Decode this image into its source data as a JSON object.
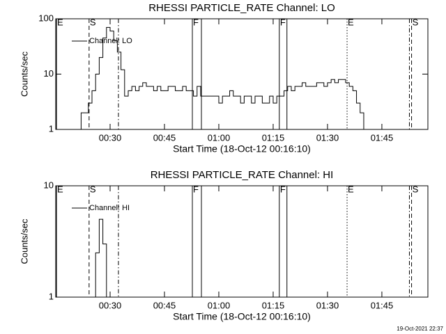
{
  "chart_data": [
    {
      "type": "line",
      "title": "RHESSI PARTICLE_RATE Channel: LO",
      "xlabel": "Start Time (18-Oct-12 00:16:10)",
      "ylabel": "Counts/sec",
      "log_y": true,
      "legend": "upper left",
      "xlim": [
        15,
        117.7
      ],
      "xticks": [
        {
          "value": 30,
          "label": "00:30"
        },
        {
          "value": 45,
          "label": "00:45"
        },
        {
          "value": 60,
          "label": "01:00"
        },
        {
          "value": 75,
          "label": "01:15"
        },
        {
          "value": 90,
          "label": "01:30"
        },
        {
          "value": 105,
          "label": "01:45"
        }
      ],
      "ylim": [
        1,
        100
      ],
      "yticks": [
        1,
        10,
        100
      ],
      "x": [
        16,
        17,
        18,
        19,
        20,
        21,
        22,
        23,
        24,
        25,
        26,
        27,
        28,
        29,
        30,
        31,
        32,
        33,
        34,
        35,
        36,
        37,
        38,
        39,
        40,
        41,
        42,
        43,
        44,
        45,
        46,
        47,
        48,
        49,
        50,
        51,
        52,
        53,
        54,
        55,
        56,
        57,
        58,
        59,
        60,
        61,
        62,
        63,
        64,
        65,
        66,
        67,
        68,
        69,
        70,
        71,
        72,
        73,
        74,
        75,
        76,
        77,
        78,
        79,
        80,
        81,
        82,
        83,
        84,
        85,
        86,
        87,
        88,
        89,
        90,
        91,
        92,
        93,
        94,
        95,
        96,
        97,
        98,
        99,
        100,
        101,
        102,
        103,
        104,
        105,
        106,
        107,
        108,
        109,
        110,
        111,
        112,
        113
      ],
      "series": [
        {
          "name": "Channel: LO",
          "color": "#000000",
          "values": [
            1,
            1,
            1,
            1,
            1,
            1,
            2,
            2,
            3,
            5,
            10,
            20,
            45,
            70,
            60,
            40,
            25,
            12,
            4,
            5,
            6,
            5,
            6,
            7,
            6,
            6,
            5,
            6,
            5,
            5,
            6,
            6,
            5,
            5,
            6,
            5,
            5,
            4,
            6,
            4,
            4,
            4,
            4,
            4,
            3,
            4,
            4,
            5,
            4,
            4,
            3,
            4,
            4,
            3,
            4,
            4,
            3,
            3,
            4,
            3,
            4,
            4,
            5,
            6,
            5,
            6,
            6,
            7,
            6,
            6,
            6,
            7,
            7,
            6,
            7,
            8,
            7,
            8,
            8,
            7,
            6,
            5,
            3,
            2,
            1,
            1,
            1,
            1,
            1,
            1,
            1,
            1,
            1,
            1,
            1,
            1,
            1,
            1
          ]
        }
      ],
      "events": [
        {
          "label": "E",
          "x": 15.2,
          "dash": "solid"
        },
        {
          "label": "S",
          "x": 24.2,
          "dash": "dashed"
        },
        {
          "x": 32.3,
          "dash": "dashdot"
        },
        {
          "label": "F",
          "x": 52.7,
          "dash": "solid"
        },
        {
          "x": 55.2,
          "dash": "solid"
        },
        {
          "label": "F",
          "x": 76.7,
          "dash": "solid"
        },
        {
          "x": 78.8,
          "dash": "solid"
        },
        {
          "label": "E",
          "x": 95.4,
          "dash": "dotted"
        },
        {
          "x": 112.6,
          "dash": "dashdot"
        },
        {
          "label": "S",
          "x": 113.2,
          "dash": "dashed"
        }
      ]
    },
    {
      "type": "line",
      "title": "RHESSI PARTICLE_RATE Channel: HI",
      "xlabel": "Start Time (18-Oct-12 00:16:10)",
      "ylabel": "Counts/sec",
      "log_y": true,
      "legend": "upper left",
      "xlim": [
        15,
        117.7
      ],
      "xticks": [
        {
          "value": 30,
          "label": "00:30"
        },
        {
          "value": 45,
          "label": "00:45"
        },
        {
          "value": 60,
          "label": "01:00"
        },
        {
          "value": 75,
          "label": "01:15"
        },
        {
          "value": 90,
          "label": "01:30"
        },
        {
          "value": 105,
          "label": "01:45"
        }
      ],
      "ylim": [
        1,
        10
      ],
      "yticks": [
        1,
        10
      ],
      "x": [
        25,
        26,
        27,
        28,
        29
      ],
      "series": [
        {
          "name": "Channel: HI",
          "color": "#000000",
          "values": [
            1,
            2.5,
            5,
            3,
            1
          ]
        }
      ],
      "events": [
        {
          "label": "E",
          "x": 15.2,
          "dash": "solid"
        },
        {
          "label": "S",
          "x": 24.2,
          "dash": "dashed"
        },
        {
          "x": 32.3,
          "dash": "dashdot"
        },
        {
          "label": "F",
          "x": 52.7,
          "dash": "solid"
        },
        {
          "x": 55.2,
          "dash": "solid"
        },
        {
          "label": "F",
          "x": 76.7,
          "dash": "solid"
        },
        {
          "x": 78.8,
          "dash": "solid"
        },
        {
          "label": "E",
          "x": 95.4,
          "dash": "dotted"
        },
        {
          "x": 112.6,
          "dash": "dashdot"
        },
        {
          "label": "S",
          "x": 113.2,
          "dash": "dashed"
        }
      ]
    }
  ],
  "footer": "19-Oct-2021 22:37"
}
